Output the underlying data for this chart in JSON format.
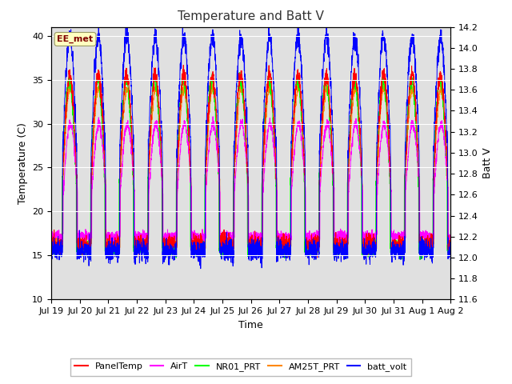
{
  "title": "Temperature and Batt V",
  "xlabel": "Time",
  "ylabel_left": "Temperature (C)",
  "ylabel_right": "Batt V",
  "annotation": "EE_met",
  "xlim_start": 0,
  "xlim_end": 14,
  "ylim_left": [
    10,
    41
  ],
  "ylim_right": [
    11.6,
    14.2
  ],
  "xtick_labels": [
    "Jul 19",
    "Jul 20",
    "Jul 21",
    "Jul 22",
    "Jul 23",
    "Jul 24",
    "Jul 25",
    "Jul 26",
    "Jul 27",
    "Jul 28",
    "Jul 29",
    "Jul 30",
    "Jul 31",
    "Aug 1",
    "Aug 2"
  ],
  "yticks_left": [
    10,
    15,
    20,
    25,
    30,
    35,
    40
  ],
  "yticks_right": [
    11.6,
    11.8,
    12.0,
    12.2,
    12.4,
    12.6,
    12.8,
    13.0,
    13.2,
    13.4,
    13.6,
    13.8,
    14.0,
    14.2
  ],
  "colors": {
    "PanelTemp": "#ff0000",
    "AirT": "#ff00ff",
    "NR01_PRT": "#00ff00",
    "AM25T_PRT": "#ff8800",
    "batt_volt": "#0000ff"
  },
  "legend_labels": [
    "PanelTemp",
    "AirT",
    "NR01_PRT",
    "AM25T_PRT",
    "batt_volt"
  ],
  "figure_facecolor": "#ffffff",
  "plot_bg_color": "#e0e0e0",
  "title_fontsize": 11,
  "label_fontsize": 9,
  "tick_fontsize": 8
}
